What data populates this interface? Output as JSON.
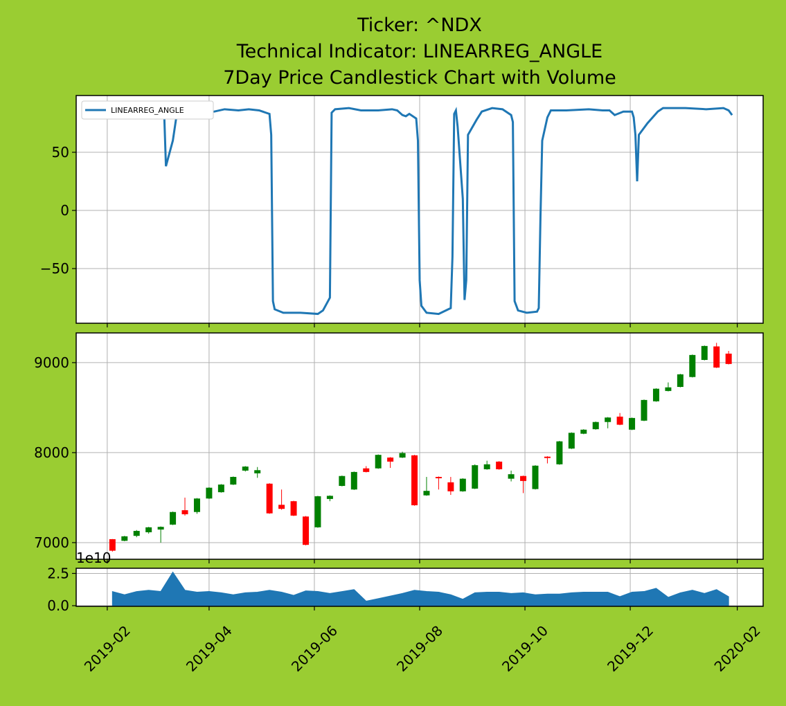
{
  "chart_data": [
    {
      "type": "line",
      "title": [
        "Ticker: ^NDX",
        "Technical Indicator: LINEARREG_ANGLE",
        "7Day Price Candlestick Chart with Volume"
      ],
      "x": [
        "2019-03-06",
        "2019-03-07",
        "2019-03-11",
        "2019-03-13",
        "2019-03-15",
        "2019-03-27",
        "2019-04-04",
        "2019-04-10",
        "2019-04-18",
        "2019-04-24",
        "2019-04-30",
        "2019-05-06",
        "2019-05-07",
        "2019-05-08",
        "2019-05-09",
        "2019-05-14",
        "2019-05-24",
        "2019-06-03",
        "2019-06-06",
        "2019-06-10",
        "2019-06-11",
        "2019-06-13",
        "2019-06-21",
        "2019-06-28",
        "2019-07-08",
        "2019-07-16",
        "2019-07-19",
        "2019-07-22",
        "2019-07-24",
        "2019-07-26",
        "2019-07-30",
        "2019-07-31",
        "2019-08-01",
        "2019-08-02",
        "2019-08-05",
        "2019-08-12",
        "2019-08-19",
        "2019-08-20",
        "2019-08-21",
        "2019-08-22",
        "2019-08-23",
        "2019-08-26",
        "2019-08-27",
        "2019-08-28",
        "2019-08-29",
        "2019-09-03",
        "2019-09-06",
        "2019-09-12",
        "2019-09-18",
        "2019-09-23",
        "2019-09-24",
        "2019-09-25",
        "2019-09-27",
        "2019-10-02",
        "2019-10-08",
        "2019-10-09",
        "2019-10-10",
        "2019-10-11",
        "2019-10-14",
        "2019-10-16",
        "2019-10-25",
        "2019-11-07",
        "2019-11-15",
        "2019-11-19",
        "2019-11-22",
        "2019-11-27",
        "2019-12-02",
        "2019-12-03",
        "2019-12-04",
        "2019-12-05",
        "2019-12-06",
        "2019-12-11",
        "2019-12-17",
        "2019-12-20",
        "2020-01-02",
        "2020-01-14",
        "2020-01-24",
        "2020-01-27",
        "2020-01-29"
      ],
      "series": [
        {
          "name": "LINEARREG_ANGLE",
          "color": "#1f77b4",
          "values": [
            83,
            38,
            60,
            80,
            85,
            84,
            85,
            87,
            86,
            87,
            86,
            83,
            65,
            -78,
            -85,
            -88,
            -88,
            -89,
            -86,
            -75,
            84,
            87,
            88,
            86,
            86,
            87,
            86,
            82,
            81,
            83,
            79,
            60,
            -60,
            -82,
            -88,
            -89,
            -84,
            -40,
            83,
            86,
            72,
            10,
            -77,
            -60,
            65,
            78,
            85,
            88,
            87,
            82,
            76,
            -78,
            -86,
            -88,
            -87,
            -84,
            -5,
            60,
            80,
            86,
            86,
            87,
            86,
            86,
            82,
            85,
            85,
            80,
            65,
            25,
            65,
            75,
            85,
            88,
            88,
            87,
            88,
            86,
            82
          ]
        }
      ],
      "legend": "upper left",
      "grid": true,
      "ylim": [
        -97,
        98.8
      ],
      "yticks": [
        {
          "value": -50,
          "label": "−50"
        },
        0,
        50
      ]
    },
    {
      "type": "candlestick",
      "x": [
        "2019-02-04",
        "2019-02-11",
        "2019-02-18",
        "2019-02-25",
        "2019-03-04",
        "2019-03-11",
        "2019-03-18",
        "2019-03-25",
        "2019-04-01",
        "2019-04-08",
        "2019-04-15",
        "2019-04-22",
        "2019-04-29",
        "2019-05-06",
        "2019-05-13",
        "2019-05-20",
        "2019-05-27",
        "2019-06-03",
        "2019-06-10",
        "2019-06-17",
        "2019-06-24",
        "2019-07-01",
        "2019-07-08",
        "2019-07-15",
        "2019-07-22",
        "2019-07-29",
        "2019-08-05",
        "2019-08-12",
        "2019-08-19",
        "2019-08-26",
        "2019-09-02",
        "2019-09-09",
        "2019-09-16",
        "2019-09-23",
        "2019-09-30",
        "2019-10-07",
        "2019-10-14",
        "2019-10-21",
        "2019-10-28",
        "2019-11-04",
        "2019-11-11",
        "2019-11-18",
        "2019-11-25",
        "2019-12-02",
        "2019-12-09",
        "2019-12-16",
        "2019-12-23",
        "2019-12-30",
        "2020-01-06",
        "2020-01-13",
        "2020-01-20",
        "2020-01-27"
      ],
      "open": [
        7038,
        7020,
        7075,
        7115,
        7145,
        7200,
        7360,
        7340,
        7490,
        7560,
        7645,
        7800,
        7770,
        7655,
        7420,
        7460,
        7290,
        7170,
        7485,
        7630,
        7590,
        7825,
        7825,
        7945,
        7945,
        7970,
        7525,
        7730,
        7670,
        7570,
        7600,
        7815,
        7900,
        7710,
        7740,
        7595,
        7955,
        7870,
        8045,
        8210,
        8260,
        8340,
        8400,
        8255,
        8355,
        8570,
        8685,
        8730,
        8840,
        9030,
        9180,
        9100
      ],
      "high": [
        7040,
        7075,
        7140,
        7175,
        7180,
        7345,
        7500,
        7495,
        7615,
        7650,
        7735,
        7850,
        7840,
        7660,
        7590,
        7465,
        7295,
        7520,
        7525,
        7745,
        7790,
        7850,
        7980,
        7950,
        8010,
        7975,
        7730,
        7735,
        7730,
        7715,
        7870,
        7910,
        7905,
        7800,
        7745,
        7860,
        7960,
        8130,
        8225,
        8260,
        8345,
        8395,
        8440,
        8390,
        8590,
        8715,
        8780,
        8875,
        9090,
        9190,
        9220,
        9130
      ],
      "low": [
        6900,
        7015,
        7060,
        7100,
        7000,
        7195,
        7300,
        7320,
        7485,
        7555,
        7640,
        7790,
        7720,
        7320,
        7365,
        7295,
        6970,
        7165,
        7460,
        7625,
        7585,
        7780,
        7820,
        7830,
        7940,
        7410,
        7520,
        7590,
        7530,
        7565,
        7595,
        7810,
        7810,
        7680,
        7550,
        7590,
        7880,
        7865,
        8040,
        8205,
        8255,
        8270,
        8305,
        8250,
        8350,
        8565,
        8680,
        8725,
        8835,
        9025,
        8940,
        8980
      ],
      "close": [
        6910,
        7070,
        7130,
        7170,
        7175,
        7340,
        7315,
        7490,
        7610,
        7645,
        7730,
        7845,
        7805,
        7325,
        7375,
        7300,
        6975,
        7515,
        7520,
        7740,
        7785,
        7785,
        7975,
        7900,
        7995,
        7415,
        7575,
        7715,
        7570,
        7710,
        7860,
        7870,
        7815,
        7760,
        7685,
        7855,
        7940,
        8125,
        8220,
        8255,
        8340,
        8390,
        8310,
        8385,
        8585,
        8710,
        8725,
        8870,
        9085,
        9185,
        8945,
        8985
      ],
      "up_color": "green",
      "down_color": "red",
      "grid": true,
      "ylim": [
        6815,
        9330
      ],
      "yticks": [
        7000,
        8000,
        9000
      ]
    },
    {
      "type": "area",
      "x": [
        "2019-02-04",
        "2019-02-11",
        "2019-02-18",
        "2019-02-25",
        "2019-03-04",
        "2019-03-11",
        "2019-03-18",
        "2019-03-25",
        "2019-04-01",
        "2019-04-08",
        "2019-04-15",
        "2019-04-22",
        "2019-04-29",
        "2019-05-06",
        "2019-05-13",
        "2019-05-20",
        "2019-05-27",
        "2019-06-03",
        "2019-06-10",
        "2019-06-17",
        "2019-06-24",
        "2019-07-01",
        "2019-07-08",
        "2019-07-15",
        "2019-07-22",
        "2019-07-29",
        "2019-08-05",
        "2019-08-12",
        "2019-08-19",
        "2019-08-26",
        "2019-09-02",
        "2019-09-09",
        "2019-09-16",
        "2019-09-23",
        "2019-09-30",
        "2019-10-07",
        "2019-10-14",
        "2019-10-21",
        "2019-10-28",
        "2019-11-04",
        "2019-11-11",
        "2019-11-18",
        "2019-11-25",
        "2019-12-02",
        "2019-12-09",
        "2019-12-16",
        "2019-12-23",
        "2019-12-30",
        "2020-01-06",
        "2020-01-13",
        "2020-01-20",
        "2020-01-27"
      ],
      "values": [
        1.1,
        0.85,
        1.1,
        1.2,
        1.1,
        2.6,
        1.2,
        1.05,
        1.1,
        1.0,
        0.85,
        1.0,
        1.05,
        1.2,
        1.05,
        0.8,
        1.15,
        1.1,
        0.95,
        1.1,
        1.25,
        0.35,
        0.55,
        0.75,
        0.95,
        1.2,
        1.1,
        1.05,
        0.85,
        0.5,
        1.0,
        1.05,
        1.05,
        0.95,
        1.0,
        0.85,
        0.9,
        0.9,
        1.0,
        1.05,
        1.05,
        1.05,
        0.7,
        1.05,
        1.1,
        1.35,
        0.65,
        1.0,
        1.2,
        0.95,
        1.25,
        0.7
      ],
      "color": "#1f77b4",
      "grid": true,
      "offset_label": "1e10",
      "ylim": [
        -0.05,
        2.9
      ],
      "yticks": [
        {
          "value": 0,
          "label": "0.0"
        },
        2.5
      ],
      "xlim": [
        "2019-01-14",
        "2020-02-16"
      ],
      "xticks": [
        "2019-02",
        "2019-04",
        "2019-06",
        "2019-08",
        "2019-10",
        "2019-12",
        "2020-02"
      ]
    }
  ]
}
